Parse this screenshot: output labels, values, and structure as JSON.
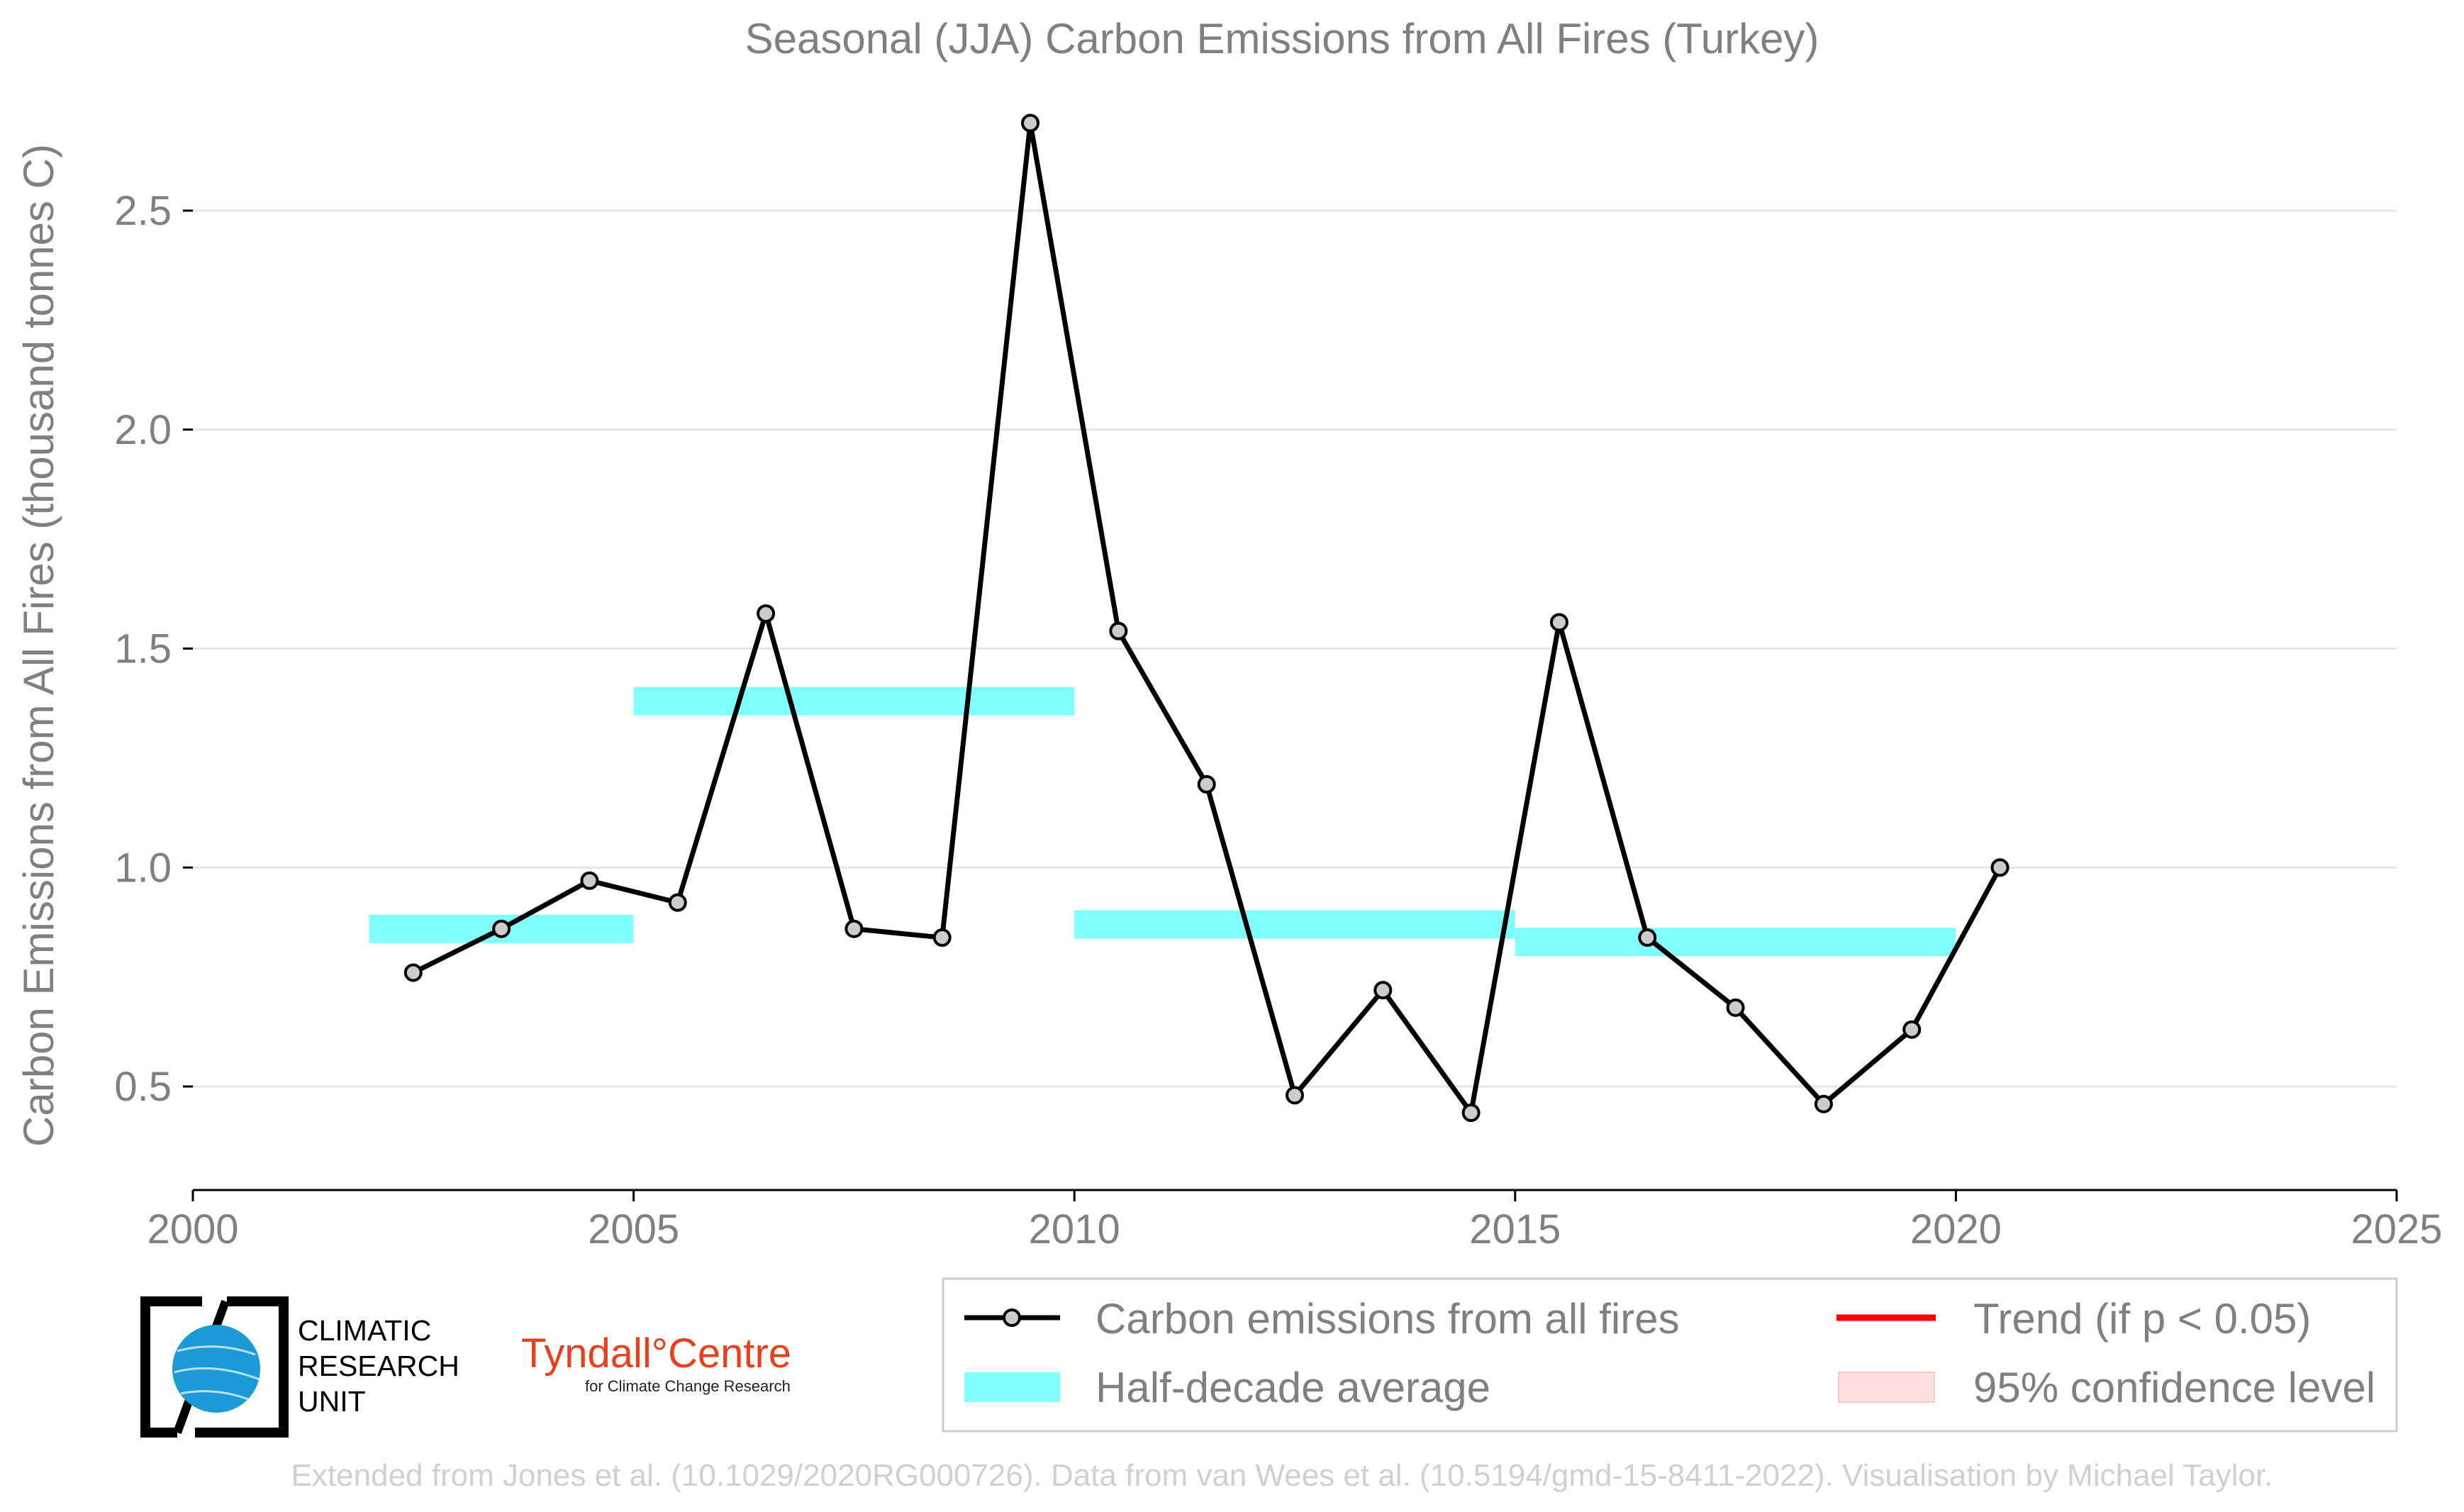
{
  "chart_data": {
    "type": "line",
    "title": "Seasonal (JJA) Carbon Emissions from All Fires (Turkey)",
    "xlabel": "",
    "ylabel": "Carbon Emissions from All Fires (thousand tonnes C)",
    "xlim": [
      2000,
      2025
    ],
    "ylim": [
      0.25,
      2.75
    ],
    "x_ticks": [
      "2000",
      "2005",
      "2010",
      "2015",
      "2020",
      "2025"
    ],
    "y_ticks": [
      "0.5",
      "1.0",
      "1.5",
      "2.0",
      "2.5"
    ],
    "grid": "horizontal",
    "legend_position": "bottom-right",
    "series": [
      {
        "name": "Carbon emissions from all fires",
        "color": "#000000",
        "x": [
          2002.5,
          2003.5,
          2004.5,
          2005.5,
          2006.5,
          2007.5,
          2008.5,
          2009.5,
          2010.5,
          2011.5,
          2012.5,
          2013.5,
          2014.5,
          2015.5,
          2016.5,
          2017.5,
          2018.5,
          2019.5,
          2020.5
        ],
        "y": [
          0.76,
          0.86,
          0.97,
          0.92,
          1.58,
          0.86,
          0.84,
          2.7,
          1.54,
          1.19,
          0.48,
          0.72,
          0.44,
          1.56,
          0.84,
          0.68,
          0.46,
          0.63,
          1.0
        ]
      }
    ],
    "half_decade_average": {
      "name": "Half-decade average",
      "color": "#80ffff",
      "segments": [
        {
          "x_start": 2002,
          "x_end": 2005,
          "y": 0.86
        },
        {
          "x_start": 2005,
          "x_end": 2010,
          "y": 1.38
        },
        {
          "x_start": 2010,
          "x_end": 2015,
          "y": 0.87
        },
        {
          "x_start": 2015,
          "x_end": 2020,
          "y": 0.83
        }
      ]
    },
    "legend": [
      {
        "label": "Carbon emissions from all fires",
        "kind": "line-marker",
        "color": "#000000"
      },
      {
        "label": "Trend (if p < 0.05)",
        "kind": "line",
        "color": "#ff0000"
      },
      {
        "label": "Half-decade average",
        "kind": "band",
        "color": "#80ffff"
      },
      {
        "label": "95% confidence level",
        "kind": "patch",
        "color": "#ffe0e0"
      }
    ]
  },
  "logos": {
    "cru": {
      "lines": [
        "CLIMATIC",
        "RESEARCH",
        "UNIT"
      ],
      "globe_color": "#1a9ad6"
    },
    "tyndall": {
      "main": "Tyndall°Centre",
      "sub": "for Climate Change Research",
      "color": "#e8401c"
    }
  },
  "credit": "Extended from Jones et al. (10.1029/2020RG000726). Data from van Wees et al. (10.5194/gmd-15-8411-2022). Visualisation by Michael Taylor."
}
